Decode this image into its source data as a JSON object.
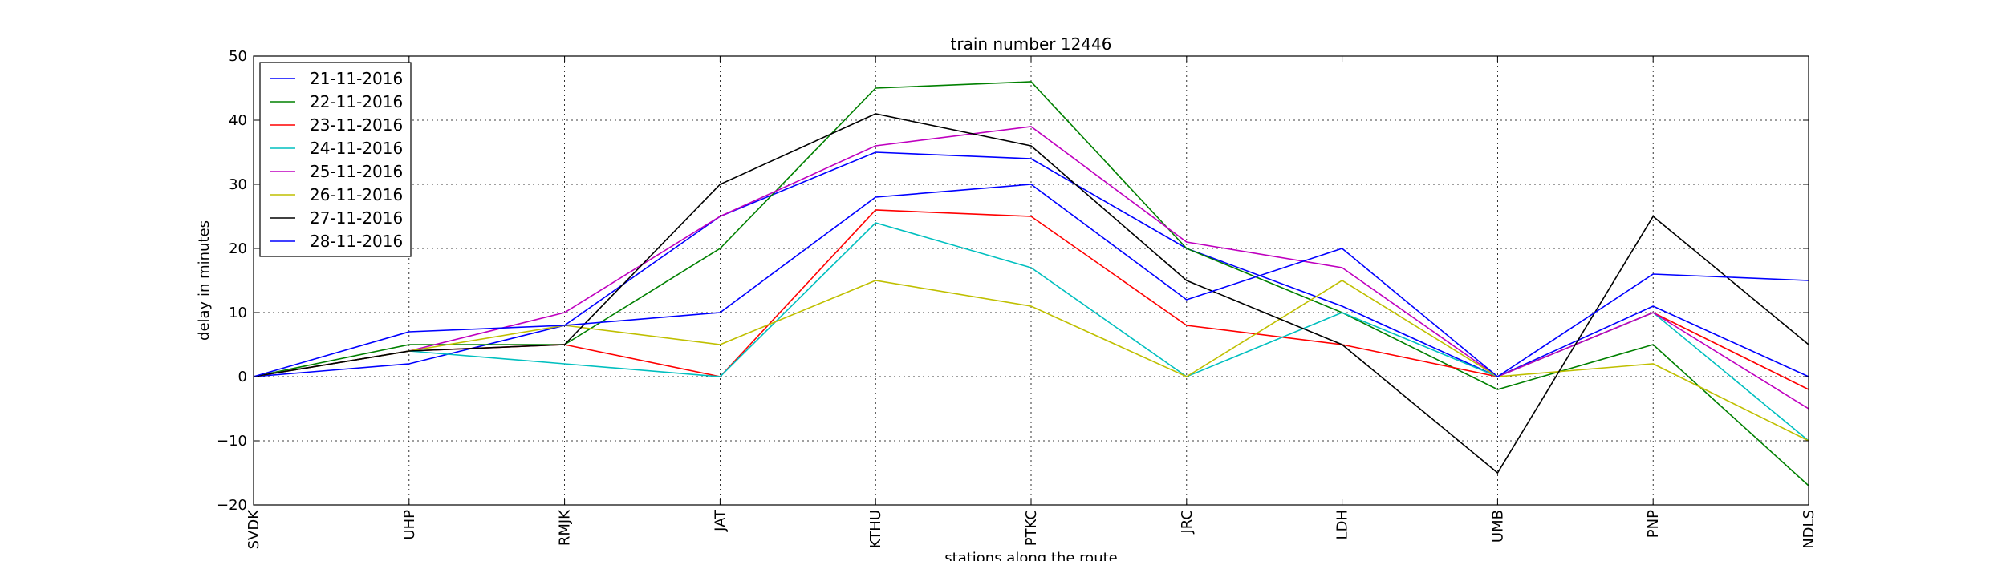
{
  "chart_data": {
    "type": "line",
    "title": "train number 12446",
    "xlabel": "stations along the route",
    "ylabel": "delay in minutes",
    "categories": [
      "SVDK",
      "UHP",
      "RMJK",
      "JAT",
      "KTHU",
      "PTKC",
      "JRC",
      "LDH",
      "UMB",
      "PNP",
      "NDLS"
    ],
    "ylim": [
      -20,
      50
    ],
    "yticks": [
      -20,
      -10,
      0,
      10,
      20,
      30,
      40,
      50
    ],
    "ytick_labels": [
      "−20",
      "−10",
      "0",
      "10",
      "20",
      "30",
      "40",
      "50"
    ],
    "grid": true,
    "legend_position": "top-left",
    "series": [
      {
        "name": "21-11-2016",
        "color": "#0000ff",
        "values": [
          0,
          2,
          8,
          25,
          35,
          34,
          20,
          11,
          0,
          11,
          0
        ]
      },
      {
        "name": "22-11-2016",
        "color": "#008000",
        "values": [
          0,
          5,
          5,
          20,
          45,
          46,
          20,
          10,
          -2,
          5,
          -17
        ]
      },
      {
        "name": "23-11-2016",
        "color": "#ff0000",
        "values": [
          0,
          4,
          5,
          0,
          26,
          25,
          8,
          5,
          0,
          10,
          -2
        ]
      },
      {
        "name": "24-11-2016",
        "color": "#00bfbf",
        "values": [
          0,
          4,
          2,
          0,
          24,
          17,
          0,
          10,
          0,
          10,
          -10
        ]
      },
      {
        "name": "25-11-2016",
        "color": "#bf00bf",
        "values": [
          0,
          4,
          10,
          25,
          36,
          39,
          21,
          17,
          0,
          10,
          -5
        ]
      },
      {
        "name": "26-11-2016",
        "color": "#bfbf00",
        "values": [
          0,
          4,
          8,
          5,
          15,
          11,
          0,
          15,
          0,
          2,
          -10
        ]
      },
      {
        "name": "27-11-2016",
        "color": "#000000",
        "values": [
          0,
          4,
          5,
          30,
          41,
          36,
          15,
          5,
          -15,
          25,
          5
        ]
      },
      {
        "name": "28-11-2016",
        "color": "#0000ff",
        "values": [
          0,
          7,
          8,
          10,
          28,
          30,
          12,
          20,
          0,
          16,
          15
        ]
      }
    ]
  }
}
